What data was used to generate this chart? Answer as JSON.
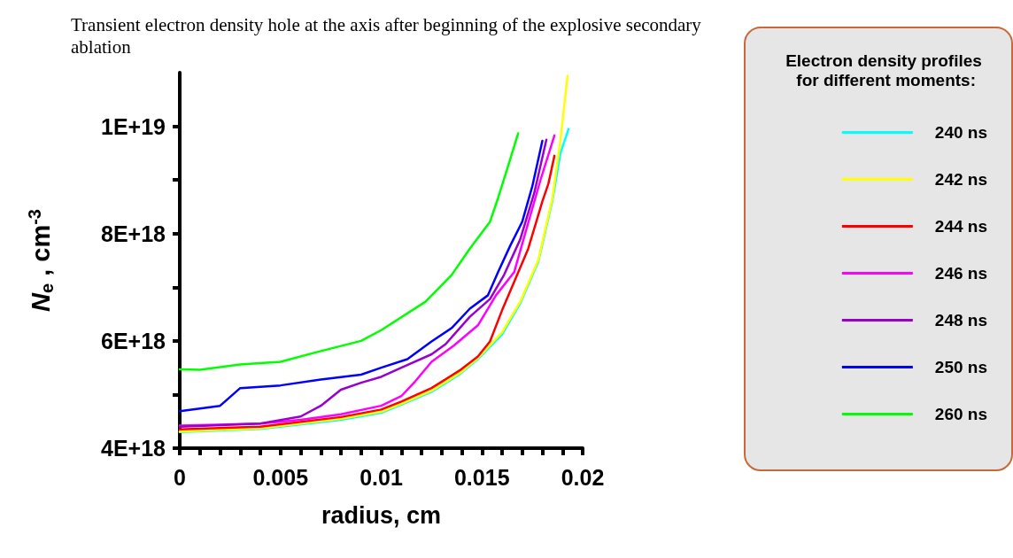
{
  "chart_data": {
    "type": "line",
    "title": "Transient electron density hole at the axis after beginning of the explosive secondary ablation",
    "xlabel": "radius, cm",
    "ylabel": "N$_{e}$ , cm$^{-3}$",
    "legend_title": "Electron density profiles for different moments:",
    "legend": "right",
    "grid": false,
    "marker": "none",
    "line_style": "solid",
    "xlim": [
      0,
      0.02
    ],
    "ylim": [
      4e+18,
      1.1e+19
    ],
    "xticks": [
      0,
      {
        "value": 0.001,
        "label": null
      },
      {
        "value": 0.002,
        "label": null
      },
      {
        "value": 0.003,
        "label": null
      },
      {
        "value": 0.004,
        "label": null
      },
      0.005,
      {
        "value": 0.006,
        "label": null
      },
      {
        "value": 0.007,
        "label": null
      },
      {
        "value": 0.008,
        "label": null
      },
      {
        "value": 0.009,
        "label": null
      },
      0.01,
      {
        "value": 0.011,
        "label": null
      },
      {
        "value": 0.012,
        "label": null
      },
      {
        "value": 0.013,
        "label": null
      },
      {
        "value": 0.014,
        "label": null
      },
      0.015,
      {
        "value": 0.016,
        "label": null
      },
      {
        "value": 0.017,
        "label": null
      },
      {
        "value": 0.018,
        "label": null
      },
      {
        "value": 0.019,
        "label": null
      },
      0.02
    ],
    "yticks": [
      {
        "value": 4e+18,
        "label": "4E+18"
      },
      {
        "value": 5e+18,
        "label": null
      },
      {
        "value": 6e+18,
        "label": "6E+18"
      },
      {
        "value": 7e+18,
        "label": null
      },
      {
        "value": 8e+18,
        "label": "8E+18"
      },
      {
        "value": 9e+18,
        "label": null
      },
      {
        "value": 1e+19,
        "label": "1E+19"
      }
    ],
    "series": [
      {
        "name": "240 ns",
        "color": "#00ffff",
        "x": [
          0,
          0.004,
          0.008,
          0.01,
          0.011,
          0.0125,
          0.0139,
          0.0148,
          0.016,
          0.0169,
          0.0178,
          0.0185,
          0.0189,
          0.0193
        ],
        "values": [
          4.3e+18,
          4.36e+18,
          4.53e+18,
          4.66e+18,
          4.81e+18,
          5.05e+18,
          5.38e+18,
          5.66e+18,
          6.12e+18,
          6.7e+18,
          7.48e+18,
          8.62e+18,
          9.5e+18,
          9.95e+18
        ]
      },
      {
        "name": "242 ns",
        "color": "#ffff00",
        "x": [
          0,
          0.004,
          0.008,
          0.01,
          0.011,
          0.0125,
          0.0139,
          0.0148,
          0.016,
          0.0169,
          0.0178,
          0.0185,
          0.0189,
          0.01925
        ],
        "values": [
          4.31e+18,
          4.37e+18,
          4.55e+18,
          4.68e+18,
          4.83e+18,
          5.07e+18,
          5.4e+18,
          5.68e+18,
          6.16e+18,
          6.73e+18,
          7.51e+18,
          8.66e+18,
          9.75e+18,
          1.094e+19
        ]
      },
      {
        "name": "244 ns",
        "color": "#ff0000",
        "x": [
          0,
          0.004,
          0.008,
          0.01,
          0.011,
          0.0125,
          0.0139,
          0.0148,
          0.0154,
          0.016,
          0.0166,
          0.0173,
          0.018,
          0.0183,
          0.0186
        ],
        "values": [
          4.35e+18,
          4.4e+18,
          4.58e+18,
          4.72e+18,
          4.87e+18,
          5.12e+18,
          5.45e+18,
          5.71e+18,
          5.99e+18,
          6.57e+18,
          7.1e+18,
          7.72e+18,
          8.6e+18,
          8.93e+18,
          9.45e+18
        ]
      },
      {
        "name": "246 ns",
        "color": "#ff00ff",
        "x": [
          0,
          0.004,
          0.006,
          0.008,
          0.01,
          0.011,
          0.0117,
          0.0125,
          0.0136,
          0.0148,
          0.0157,
          0.0166,
          0.0171,
          0.0179,
          0.0186
        ],
        "values": [
          4.42e+18,
          4.46e+18,
          4.53e+18,
          4.63e+18,
          4.79e+18,
          4.97e+18,
          5.25e+18,
          5.61e+18,
          5.91e+18,
          6.29e+18,
          6.85e+18,
          7.28e+18,
          7.94e+18,
          8.99e+18,
          9.83e+18
        ]
      },
      {
        "name": "248 ns",
        "color": "#9900cc",
        "x": [
          0,
          0.004,
          0.006,
          0.007,
          0.008,
          0.009,
          0.01,
          0.011,
          0.0125,
          0.0132,
          0.0144,
          0.0154,
          0.0161,
          0.0169,
          0.0176,
          0.0182
        ],
        "values": [
          4.4e+18,
          4.46e+18,
          4.59e+18,
          4.79e+18,
          5.09e+18,
          5.22e+18,
          5.33e+18,
          5.5e+18,
          5.75e+18,
          5.94e+18,
          6.45e+18,
          6.78e+18,
          7.23e+18,
          7.89e+18,
          8.76e+18,
          9.75e+18
        ]
      },
      {
        "name": "250 ns",
        "color": "#0000ff",
        "x": [
          0,
          0.002,
          0.003,
          0.005,
          0.007,
          0.009,
          0.01,
          0.0113,
          0.0125,
          0.0135,
          0.0144,
          0.0153,
          0.0158,
          0.0164,
          0.017,
          0.0175,
          0.018
        ],
        "values": [
          4.69e+18,
          4.79e+18,
          5.12e+18,
          5.17e+18,
          5.28e+18,
          5.37e+18,
          5.5e+18,
          5.66e+18,
          5.99e+18,
          6.24e+18,
          6.6e+18,
          6.85e+18,
          7.28e+18,
          7.77e+18,
          8.22e+18,
          8.88e+18,
          9.73e+18
        ]
      },
      {
        "name": "260 ns",
        "color": "#00ff00",
        "x": [
          0,
          0.001,
          0.003,
          0.005,
          0.007,
          0.009,
          0.01,
          0.0122,
          0.0135,
          0.0144,
          0.0154,
          0.0158,
          0.0163,
          0.0168
        ],
        "values": [
          5.47e+18,
          5.46e+18,
          5.56e+18,
          5.61e+18,
          5.81e+18,
          6e+18,
          6.2e+18,
          6.73e+18,
          7.23e+18,
          7.72e+18,
          8.22e+18,
          8.66e+18,
          9.26e+18,
          9.87e+18
        ]
      }
    ]
  }
}
